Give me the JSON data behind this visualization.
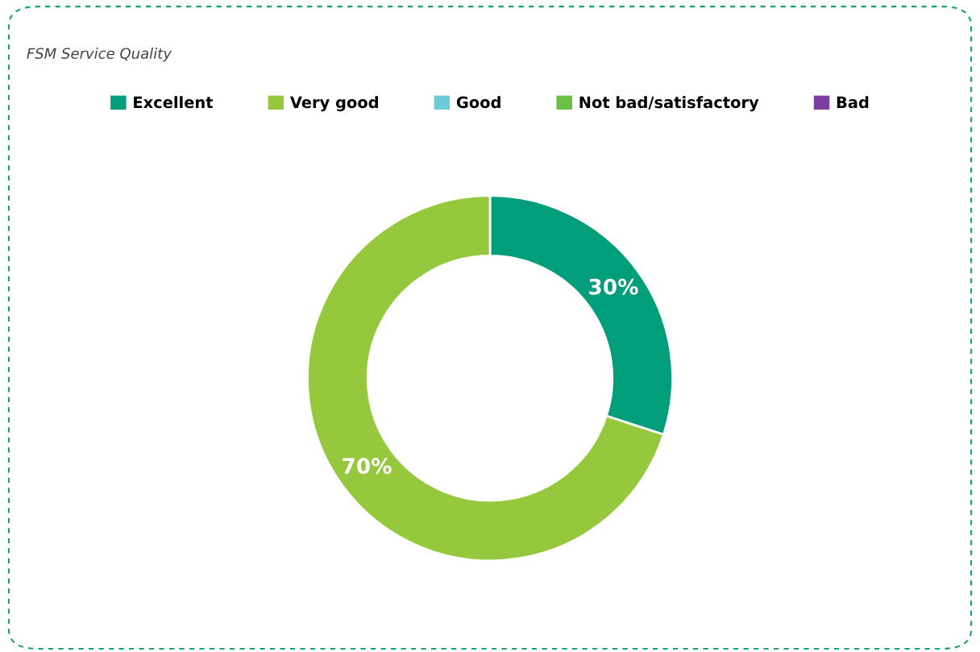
{
  "chart_data": {
    "type": "donut",
    "title": "FSM Service Quality",
    "categories": [
      "Excellent",
      "Very good",
      "Good",
      "Not bad/satisfactory",
      "Bad"
    ],
    "values": [
      30,
      70,
      0,
      0,
      0
    ],
    "colors": [
      "#009e7a",
      "#95c83d",
      "#6ccbd8",
      "#6abf45",
      "#7b3f9e"
    ],
    "value_labels": [
      "30%",
      "70%",
      null,
      null,
      null
    ],
    "legend": "top"
  }
}
